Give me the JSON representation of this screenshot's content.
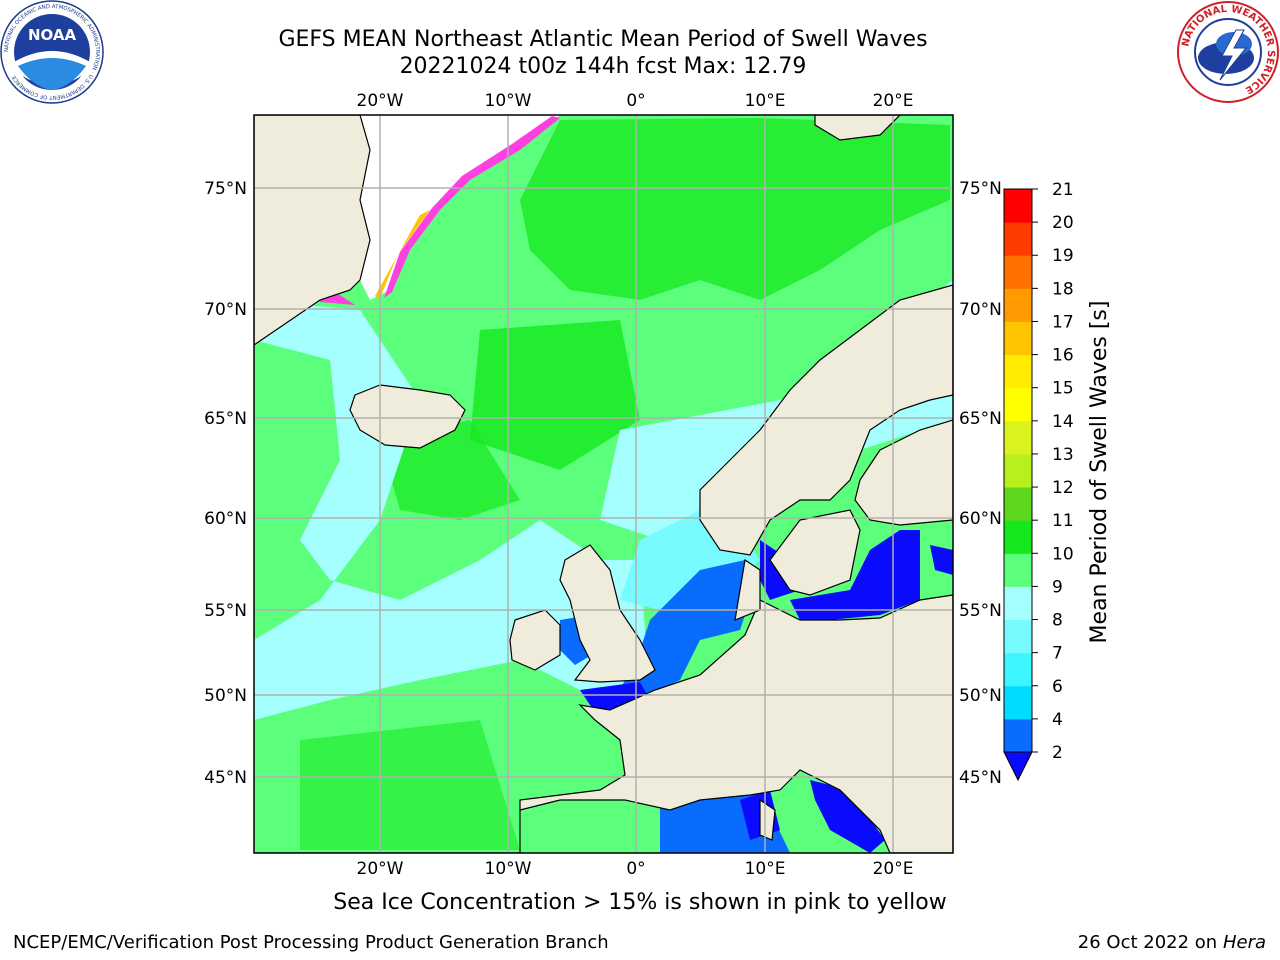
{
  "header": {
    "title_line1": "GEFS MEAN Northeast Atlantic Mean Period of Swell Waves",
    "title_line2": "20221024 t00z 144h fcst   Max: 12.79"
  },
  "logos": {
    "left": {
      "name": "noaa-logo",
      "text": "NOAA",
      "ring_text": "NATIONAL OCEANIC AND ATMOSPHERIC ADMINISTRATION · U.S. DEPARTMENT OF COMMERCE"
    },
    "right": {
      "name": "nws-logo",
      "ring_text": "NATIONAL WEATHER SERVICE"
    }
  },
  "map": {
    "lon_labels": [
      "20°W",
      "10°W",
      "0°",
      "10°E",
      "20°E"
    ],
    "lat_labels": [
      "75°N",
      "70°N",
      "65°N",
      "60°N",
      "55°N",
      "50°N",
      "45°N"
    ],
    "colors": {
      "land": "#efecdb",
      "ocean_fill": "#5dff7e",
      "grid": "#b0b0b0",
      "coast": "#000000"
    }
  },
  "colorbar": {
    "label": "Mean Period of Swell Waves [s]",
    "ticks": [
      "2",
      "4",
      "6",
      "7",
      "8",
      "9",
      "10",
      "11",
      "12",
      "13",
      "14",
      "15",
      "16",
      "17",
      "18",
      "19",
      "20",
      "21"
    ],
    "colors": [
      "#0a0aff",
      "#0a6cff",
      "#00dcff",
      "#3cf5ff",
      "#78fbff",
      "#a5ffff",
      "#5bff7c",
      "#15e81d",
      "#5ed61e",
      "#b8f01e",
      "#dcf21e",
      "#ffff00",
      "#ffec00",
      "#ffc400",
      "#ff9a00",
      "#ff7000",
      "#ff3c00",
      "#ff0000"
    ],
    "under_color": "#0a0aff"
  },
  "footer": {
    "caption": "Sea Ice Concentration > 15% is shown in pink to yellow",
    "credit_left": "NCEP/EMC/Verification Post Processing Product Generation Branch",
    "credit_right_date": "26 Oct 2022 on",
    "credit_right_host": "Hera"
  }
}
